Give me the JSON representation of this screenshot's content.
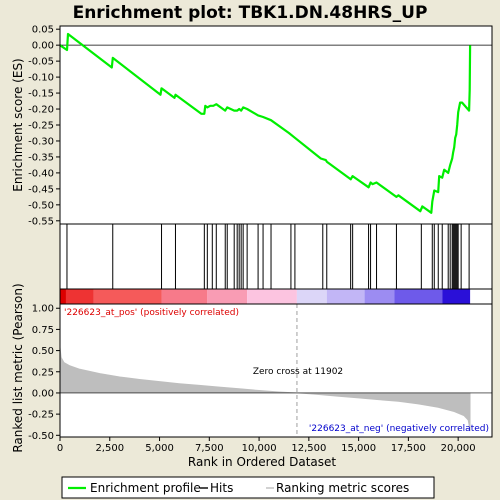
{
  "title": "Enrichment plot: TBK1.DN.48HRS_UP",
  "colors": {
    "background": "#ece9d8",
    "enrichment_line": "#00ee00",
    "hit_line": "#000000",
    "ranking_fill": "#bebebe",
    "pos_label": "#dd0000",
    "neg_label": "#0000cc",
    "zero_cross_line": "#a0a0a0"
  },
  "annotations": {
    "pos_label": "'226623_at_pos' (positively correlated)",
    "neg_label": "'226623_at_neg' (negatively correlated)",
    "zero_cross": "Zero cross at 11902"
  },
  "legend": {
    "items": [
      {
        "label": "Enrichment profile",
        "color": "#00ee00",
        "kind": "line"
      },
      {
        "label": "Hits",
        "color": "#000000",
        "kind": "line"
      },
      {
        "label": "Ranking metric scores",
        "color": "#bebebe",
        "kind": "line"
      }
    ]
  },
  "chart_data": [
    {
      "type": "line",
      "name": "enrichment-profile",
      "ylabel": "Enrichment score (ES)",
      "xlim": [
        0,
        21700
      ],
      "ylim": [
        -0.56,
        0.06
      ],
      "yticks": [
        0.05,
        0.0,
        -0.05,
        -0.1,
        -0.15,
        -0.2,
        -0.25,
        -0.3,
        -0.35,
        -0.4,
        -0.45,
        -0.5,
        -0.55
      ],
      "ytick_labels": [
        "0.05",
        "0.00",
        "-0.05",
        "-0.10",
        "-0.15",
        "-0.20",
        "-0.25",
        "-0.30",
        "-0.35",
        "-0.40",
        "-0.45",
        "-0.50",
        "-0.55"
      ],
      "grid": false,
      "points": [
        [
          0,
          0.0
        ],
        [
          350,
          -0.015
        ],
        [
          400,
          0.035
        ],
        [
          2600,
          -0.07
        ],
        [
          2650,
          -0.04
        ],
        [
          5050,
          -0.155
        ],
        [
          5100,
          -0.135
        ],
        [
          5750,
          -0.165
        ],
        [
          5800,
          -0.155
        ],
        [
          7100,
          -0.215
        ],
        [
          7250,
          -0.215
        ],
        [
          7300,
          -0.19
        ],
        [
          7400,
          -0.195
        ],
        [
          7550,
          -0.19
        ],
        [
          7700,
          -0.19
        ],
        [
          7850,
          -0.185
        ],
        [
          8300,
          -0.205
        ],
        [
          8400,
          -0.195
        ],
        [
          8750,
          -0.205
        ],
        [
          8900,
          -0.205
        ],
        [
          9000,
          -0.2
        ],
        [
          9100,
          -0.205
        ],
        [
          9200,
          -0.195
        ],
        [
          9400,
          -0.2
        ],
        [
          9950,
          -0.22
        ],
        [
          10200,
          -0.225
        ],
        [
          10600,
          -0.235
        ],
        [
          11500,
          -0.275
        ],
        [
          11800,
          -0.29
        ],
        [
          13100,
          -0.355
        ],
        [
          13350,
          -0.36
        ],
        [
          13400,
          -0.365
        ],
        [
          14600,
          -0.42
        ],
        [
          14700,
          -0.41
        ],
        [
          15500,
          -0.445
        ],
        [
          15600,
          -0.43
        ],
        [
          15700,
          -0.435
        ],
        [
          15900,
          -0.43
        ],
        [
          16900,
          -0.475
        ],
        [
          17000,
          -0.47
        ],
        [
          18100,
          -0.52
        ],
        [
          18200,
          -0.505
        ],
        [
          18650,
          -0.525
        ],
        [
          18700,
          -0.49
        ],
        [
          18800,
          -0.455
        ],
        [
          19000,
          -0.46
        ],
        [
          19050,
          -0.41
        ],
        [
          19200,
          -0.415
        ],
        [
          19300,
          -0.39
        ],
        [
          19500,
          -0.4
        ],
        [
          19600,
          -0.375
        ],
        [
          19700,
          -0.355
        ],
        [
          19750,
          -0.335
        ],
        [
          19800,
          -0.32
        ],
        [
          19850,
          -0.29
        ],
        [
          19900,
          -0.28
        ],
        [
          19950,
          -0.25
        ],
        [
          20000,
          -0.21
        ],
        [
          20100,
          -0.18
        ],
        [
          20200,
          -0.18
        ],
        [
          20550,
          -0.205
        ],
        [
          20580,
          -0.14
        ],
        [
          20600,
          0.0
        ]
      ]
    },
    {
      "type": "hits",
      "name": "hits",
      "x": [
        350,
        2650,
        5100,
        5800,
        7250,
        7400,
        7650,
        7850,
        8300,
        8400,
        8750,
        8900,
        9000,
        9100,
        9200,
        9400,
        9950,
        10200,
        10600,
        11600,
        11800,
        13200,
        13400,
        14600,
        14700,
        15500,
        15600,
        15900,
        16900,
        18150,
        18700,
        18800,
        19000,
        19200,
        19500,
        19600,
        19700,
        19750,
        19800,
        19850,
        19900,
        19950,
        20000,
        20150,
        20550
      ]
    },
    {
      "type": "heatmap",
      "name": "rank-color-bar",
      "bands": [
        {
          "from": 0,
          "to": 300,
          "color": "#dd0000"
        },
        {
          "from": 300,
          "to": 1700,
          "color": "#ee3333"
        },
        {
          "from": 1700,
          "to": 5100,
          "color": "#f55a5a"
        },
        {
          "from": 5100,
          "to": 7400,
          "color": "#f77a8a"
        },
        {
          "from": 7400,
          "to": 9400,
          "color": "#f99cb4"
        },
        {
          "from": 9400,
          "to": 11900,
          "color": "#fcc4e0"
        },
        {
          "from": 11900,
          "to": 13400,
          "color": "#dcd6f8"
        },
        {
          "from": 13400,
          "to": 15300,
          "color": "#c2b6f6"
        },
        {
          "from": 15300,
          "to": 16800,
          "color": "#9c8cf2"
        },
        {
          "from": 16800,
          "to": 19200,
          "color": "#6e5aea"
        },
        {
          "from": 19200,
          "to": 20600,
          "color": "#2a10d8"
        }
      ]
    },
    {
      "type": "area",
      "name": "ranked-list-metric",
      "xlabel": "Rank in Ordered Dataset",
      "ylabel": "Ranked list metric (Pearson)",
      "xlim": [
        0,
        21700
      ],
      "ylim": [
        -0.52,
        1.05
      ],
      "xticks": [
        0,
        2500,
        5000,
        7500,
        10000,
        12500,
        15000,
        17500,
        20000
      ],
      "xtick_labels": [
        "0",
        "2,500",
        "5,000",
        "7,500",
        "10,000",
        "12,500",
        "15,000",
        "17,500",
        "20,000"
      ],
      "yticks": [
        1.0,
        0.75,
        0.5,
        0.25,
        0.0,
        -0.25,
        -0.5
      ],
      "ytick_labels": [
        "1.00",
        "0.75",
        "0.50",
        "0.25",
        "0.00",
        "-0.25",
        "-0.50"
      ],
      "zero_cross": 11902,
      "points": [
        [
          0,
          0.55
        ],
        [
          60,
          0.42
        ],
        [
          200,
          0.36
        ],
        [
          500,
          0.32
        ],
        [
          1000,
          0.28
        ],
        [
          2000,
          0.23
        ],
        [
          3000,
          0.19
        ],
        [
          4000,
          0.16
        ],
        [
          5000,
          0.135
        ],
        [
          6000,
          0.11
        ],
        [
          7000,
          0.09
        ],
        [
          8000,
          0.07
        ],
        [
          9000,
          0.05
        ],
        [
          10000,
          0.03
        ],
        [
          11000,
          0.012
        ],
        [
          11902,
          0.0
        ],
        [
          13000,
          -0.02
        ],
        [
          14000,
          -0.04
        ],
        [
          15000,
          -0.06
        ],
        [
          16000,
          -0.08
        ],
        [
          17000,
          -0.1
        ],
        [
          18000,
          -0.13
        ],
        [
          19000,
          -0.17
        ],
        [
          19800,
          -0.22
        ],
        [
          20300,
          -0.27
        ],
        [
          20500,
          -0.32
        ],
        [
          20600,
          -0.45
        ]
      ]
    }
  ]
}
